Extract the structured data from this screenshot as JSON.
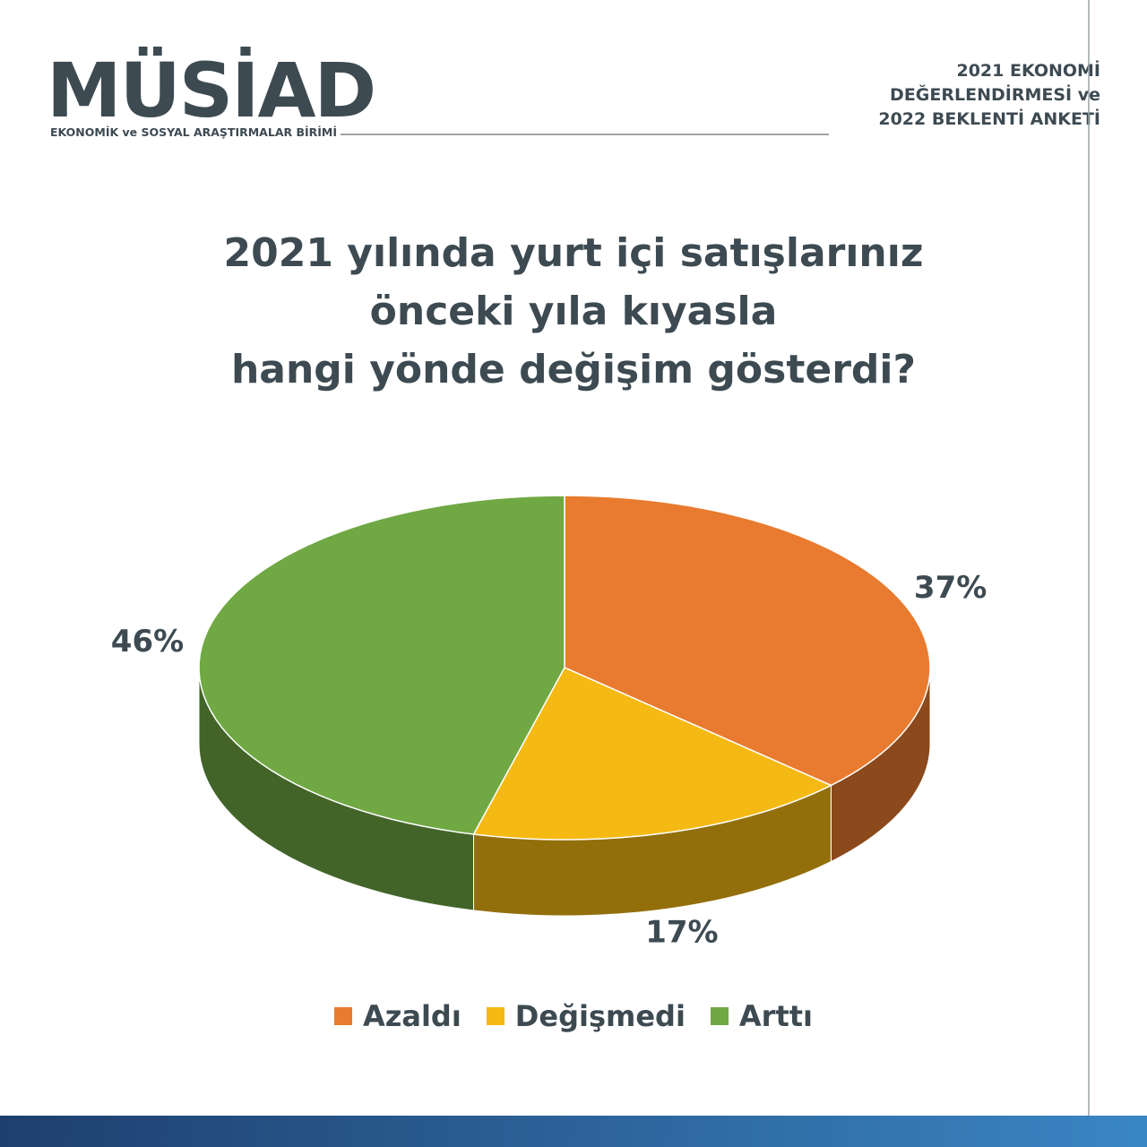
{
  "header": {
    "logo": "MÜSİAD",
    "unit": "EKONOMİK ve SOSYAL ARAŞTIRMALAR BİRİMİ",
    "report": [
      "2021 EKONOMİ",
      "DEĞERLENDİRMESİ ve",
      "2022 BEKLENTİ ANKETİ"
    ]
  },
  "chart_data": {
    "type": "pie",
    "title": [
      "2021 yılında yurt içi satışlarınız",
      "önceki yıla kıyasla",
      "hangi yönde değişim gösterdi?"
    ],
    "categories": [
      "Azaldı",
      "Değişmedi",
      "Arttı"
    ],
    "values": [
      37,
      17,
      46
    ],
    "value_labels": [
      "37%",
      "17%",
      "46%"
    ],
    "colors": [
      "#e87b2f",
      "#f5b914",
      "#70a844"
    ],
    "legend": "bottom"
  }
}
